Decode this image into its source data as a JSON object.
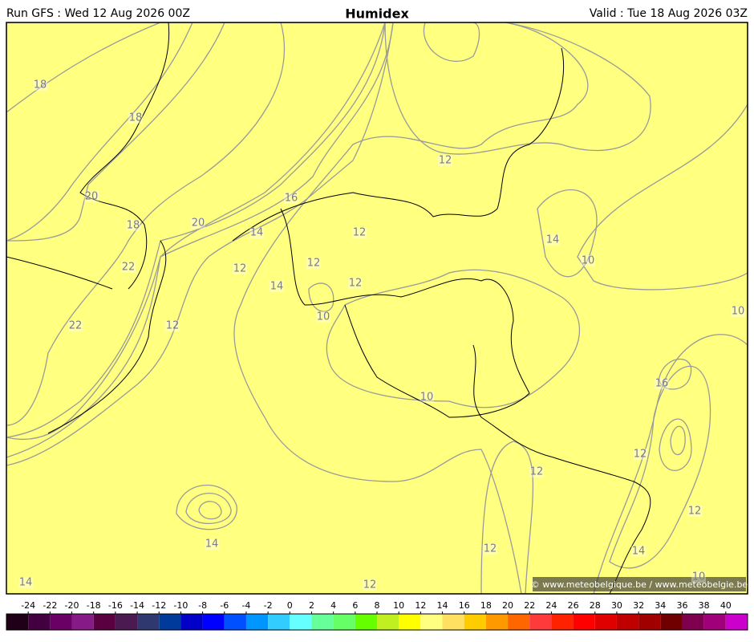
{
  "header": {
    "run": "Run GFS : Wed 12 Aug 2026 00Z",
    "title": "Humidex",
    "valid": "Valid : Tue 18 Aug 2026 03Z"
  },
  "contour_labels": [
    "18",
    "18",
    "20",
    "18",
    "22",
    "22",
    "20",
    "16",
    "14",
    "12",
    "14",
    "12",
    "12",
    "12",
    "12",
    "12",
    "10",
    "10",
    "14",
    "10",
    "10",
    "16",
    "12",
    "12",
    "12",
    "14",
    "12",
    "14",
    "14",
    "12",
    "10"
  ],
  "copyright": "© www.meteobelgique.be / www.meteobelgie.be",
  "legend": {
    "ticks": [
      -24,
      -22,
      -20,
      -18,
      -16,
      -14,
      -12,
      -10,
      -8,
      -6,
      -4,
      -2,
      0,
      2,
      4,
      6,
      8,
      10,
      12,
      14,
      16,
      18,
      20,
      22,
      24,
      26,
      28,
      30,
      32,
      34,
      36,
      38,
      40
    ],
    "colors": [
      "#200018",
      "#420040",
      "#6a0066",
      "#861a86",
      "#5a0040",
      "#4a1a50",
      "#303870",
      "#003a9a",
      "#0000c8",
      "#0000ff",
      "#0050ff",
      "#0096ff",
      "#33ccff",
      "#66ffff",
      "#66ff99",
      "#66ff66",
      "#66ff00",
      "#c0f020",
      "#ffff00",
      "#ffff80",
      "#ffe060",
      "#ffcc00",
      "#ff9900",
      "#ff6600",
      "#ff3a3a",
      "#ff2200",
      "#ff0000",
      "#e00000",
      "#c00000",
      "#a00000",
      "#700000",
      "#800050",
      "#a0007a",
      "#cc00cc"
    ]
  }
}
